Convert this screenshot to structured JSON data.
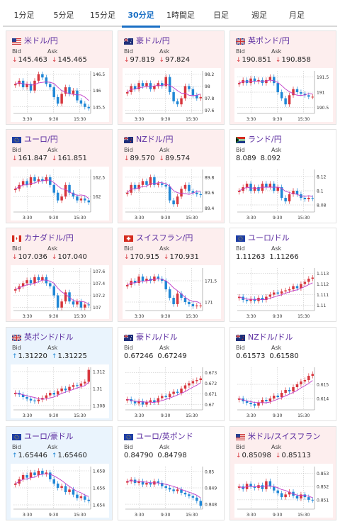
{
  "tabs": [
    {
      "label": "1分足",
      "active": false
    },
    {
      "label": "5分足",
      "active": false
    },
    {
      "label": "15分足",
      "active": false
    },
    {
      "label": "30分足",
      "active": true
    },
    {
      "label": "1時間足",
      "active": false
    },
    {
      "label": "日足",
      "active": false
    },
    {
      "label": "週足",
      "active": false
    },
    {
      "label": "月足",
      "active": false
    }
  ],
  "labels": {
    "bid": "Bid",
    "ask": "Ask"
  },
  "colors": {
    "up": "#1f87d6",
    "down": "#d7363d",
    "pair_text": "#5b2ca0",
    "ma_line": "#c13cc8",
    "active_tab": "#1a6fc4"
  },
  "cards": [
    {
      "pair": "米ドル/円",
      "flag": "us-flag",
      "direction": "down",
      "bid": "145.463",
      "ask": "145.465",
      "bg": "red",
      "chart_data": {
        "type": "candlestick",
        "x_ticks": [
          "3:30",
          "9:30",
          "15:30"
        ],
        "y_ticks": [
          "146.5",
          "146",
          "145.5"
        ],
        "ylim": [
          145.3,
          146.6
        ],
        "grid": true,
        "series": [
          146.2,
          146.3,
          146.1,
          146.2,
          146.0,
          146.3,
          146.5,
          146.4,
          146.2,
          146.1,
          145.8,
          145.6,
          145.9,
          146.1,
          145.9,
          146.0,
          145.7,
          145.6,
          145.5,
          145.46
        ]
      }
    },
    {
      "pair": "豪ドル/円",
      "flag": "au-flag",
      "direction": "down",
      "bid": "97.819",
      "ask": "97.824",
      "bg": "red",
      "chart_data": {
        "type": "candlestick",
        "x_ticks": [
          "3:30",
          "9:30",
          "15:30"
        ],
        "y_ticks": [
          "98.2",
          "98",
          "97.8",
          "97.6"
        ],
        "ylim": [
          97.55,
          98.25
        ],
        "grid": true,
        "series": [
          97.9,
          98.0,
          97.95,
          98.05,
          98.0,
          98.05,
          97.95,
          98.0,
          98.05,
          98.0,
          98.15,
          97.9,
          97.75,
          97.7,
          97.8,
          98.0,
          97.95,
          97.85,
          97.8,
          97.82
        ]
      }
    },
    {
      "pair": "英ポンド/円",
      "flag": "gb-flag",
      "direction": "down",
      "bid": "190.851",
      "ask": "190.858",
      "bg": "red",
      "chart_data": {
        "type": "candlestick",
        "x_ticks": [
          "3:30",
          "9:30",
          "15:30"
        ],
        "y_ticks": [
          "191.5",
          "191",
          "190.5"
        ],
        "ylim": [
          190.3,
          191.7
        ],
        "grid": true,
        "series": [
          191.3,
          191.4,
          191.3,
          191.45,
          191.35,
          191.4,
          191.3,
          191.4,
          191.5,
          191.3,
          191.0,
          190.8,
          190.6,
          190.9,
          191.1,
          191.0,
          190.95,
          190.9,
          190.85,
          190.85
        ]
      }
    },
    {
      "pair": "ユーロ/円",
      "flag": "eu-flag",
      "direction": "down",
      "bid": "161.847",
      "ask": "161.851",
      "bg": "red",
      "chart_data": {
        "type": "candlestick",
        "x_ticks": [
          "3:30",
          "9:30",
          "15:30"
        ],
        "y_ticks": [
          "162.5",
          "162"
        ],
        "ylim": [
          161.6,
          162.7
        ],
        "grid": true,
        "series": [
          162.2,
          162.3,
          162.4,
          162.3,
          162.5,
          162.4,
          162.45,
          162.4,
          162.5,
          162.3,
          162.1,
          161.9,
          162.0,
          162.3,
          162.1,
          162.0,
          161.9,
          161.95,
          161.9,
          161.85
        ]
      }
    },
    {
      "pair": "NZドル/円",
      "flag": "nz-flag",
      "direction": "down",
      "bid": "89.570",
      "ask": "89.574",
      "bg": "red",
      "chart_data": {
        "type": "candlestick",
        "x_ticks": [
          "3:30",
          "9:30",
          "15:30"
        ],
        "y_ticks": [
          "89.8",
          "89.6",
          "89.4"
        ],
        "ylim": [
          89.35,
          89.9
        ],
        "grid": true,
        "series": [
          89.6,
          89.7,
          89.65,
          89.7,
          89.75,
          89.7,
          89.8,
          89.7,
          89.72,
          89.7,
          89.68,
          89.5,
          89.45,
          89.55,
          89.65,
          89.7,
          89.62,
          89.6,
          89.58,
          89.57
        ]
      }
    },
    {
      "pair": "ランド/円",
      "flag": "za-flag",
      "direction": "none",
      "bid": "8.089",
      "ask": "8.092",
      "bg": "white",
      "chart_data": {
        "type": "candlestick",
        "x_ticks": [
          "3:30",
          "9:30",
          "15:30"
        ],
        "y_ticks": [
          "8.12",
          "8.1",
          "8.08"
        ],
        "ylim": [
          8.07,
          8.13
        ],
        "grid": true,
        "series": [
          8.1,
          8.105,
          8.11,
          8.1,
          8.105,
          8.1,
          8.11,
          8.105,
          8.11,
          8.1,
          8.105,
          8.09,
          8.085,
          8.095,
          8.1,
          8.095,
          8.09,
          8.088,
          8.09,
          8.089
        ]
      }
    },
    {
      "pair": "カナダドル/円",
      "flag": "ca-flag",
      "direction": "down",
      "bid": "107.036",
      "ask": "107.040",
      "bg": "red",
      "chart_data": {
        "type": "candlestick",
        "x_ticks": [
          "3:30",
          "9:30",
          "15:30"
        ],
        "y_ticks": [
          "107.6",
          "107.4",
          "107.2",
          "107"
        ],
        "ylim": [
          106.95,
          107.65
        ],
        "grid": true,
        "series": [
          107.3,
          107.35,
          107.4,
          107.45,
          107.4,
          107.5,
          107.45,
          107.5,
          107.4,
          107.35,
          107.2,
          107.0,
          107.1,
          107.25,
          107.1,
          107.05,
          107.1,
          107.0,
          107.05,
          107.04
        ]
      }
    },
    {
      "pair": "スイスフラン/円",
      "flag": "ch-flag",
      "direction": "down",
      "bid": "170.915",
      "ask": "170.931",
      "bg": "red",
      "chart_data": {
        "type": "candlestick",
        "x_ticks": [
          "3:30",
          "9:30",
          "15:30"
        ],
        "y_ticks": [
          "171.5",
          "171"
        ],
        "ylim": [
          170.8,
          171.8
        ],
        "grid": true,
        "series": [
          171.4,
          171.5,
          171.45,
          171.6,
          171.5,
          171.55,
          171.5,
          171.6,
          171.55,
          171.5,
          171.3,
          171.1,
          170.95,
          171.2,
          171.1,
          171.0,
          170.95,
          170.9,
          170.92,
          170.92
        ]
      }
    },
    {
      "pair": "ユーロ/ドル",
      "flag": "eu-flag",
      "direction": "none",
      "bid": "1.11263",
      "ask": "1.11266",
      "bg": "white",
      "chart_data": {
        "type": "candlestick",
        "x_ticks": [
          "3:30",
          "9:30",
          "15:30"
        ],
        "y_ticks": [
          "1.113",
          "1.112",
          "1.111",
          "1.11"
        ],
        "ylim": [
          1.1095,
          1.1135
        ],
        "grid": true,
        "series": [
          1.1108,
          1.1105,
          1.1104,
          1.1106,
          1.1104,
          1.1107,
          1.1105,
          1.1108,
          1.111,
          1.1112,
          1.1111,
          1.1113,
          1.1114,
          1.1115,
          1.1118,
          1.1116,
          1.112,
          1.1122,
          1.1125,
          1.1126
        ]
      }
    },
    {
      "pair": "英ポンド/ドル",
      "flag": "gb-flag",
      "direction": "up",
      "bid": "1.31220",
      "ask": "1.31225",
      "bg": "blue",
      "chart_data": {
        "type": "candlestick",
        "x_ticks": [
          "3:30",
          "9:30",
          "15:30"
        ],
        "y_ticks": [
          "1.312",
          "1.31",
          "1.308"
        ],
        "ylim": [
          1.3075,
          1.3125
        ],
        "grid": true,
        "series": [
          1.3095,
          1.3093,
          1.309,
          1.3088,
          1.3086,
          1.3085,
          1.3087,
          1.3089,
          1.3092,
          1.3095,
          1.3093,
          1.3097,
          1.31,
          1.3098,
          1.3102,
          1.3104,
          1.3103,
          1.3106,
          1.3108,
          1.3122
        ]
      }
    },
    {
      "pair": "豪ドル/ドル",
      "flag": "au-flag",
      "direction": "none",
      "bid": "0.67246",
      "ask": "0.67249",
      "bg": "white",
      "chart_data": {
        "type": "candlestick",
        "x_ticks": [
          "3:30",
          "9:30",
          "15:30"
        ],
        "y_ticks": [
          "0.673",
          "0.672",
          "0.671",
          "0.67"
        ],
        "ylim": [
          0.6695,
          0.6735
        ],
        "grid": true,
        "series": [
          0.6705,
          0.6703,
          0.6701,
          0.6703,
          0.67,
          0.6702,
          0.6704,
          0.6702,
          0.6706,
          0.6708,
          0.6707,
          0.671,
          0.6712,
          0.6711,
          0.6715,
          0.6718,
          0.672,
          0.6722,
          0.6723,
          0.67246
        ]
      }
    },
    {
      "pair": "NZドル/ドル",
      "flag": "nz-flag",
      "direction": "none",
      "bid": "0.61573",
      "ask": "0.61580",
      "bg": "white",
      "chart_data": {
        "type": "candlestick",
        "x_ticks": [
          "3:30",
          "9:30",
          "15:30"
        ],
        "y_ticks": [
          "0.615",
          "0.614"
        ],
        "ylim": [
          0.6132,
          0.6162
        ],
        "grid": true,
        "series": [
          0.614,
          0.6138,
          0.6137,
          0.6136,
          0.6135,
          0.6137,
          0.6139,
          0.6138,
          0.614,
          0.6142,
          0.6141,
          0.6144,
          0.6146,
          0.6145,
          0.6148,
          0.615,
          0.6152,
          0.6153,
          0.6156,
          0.61573
        ]
      }
    },
    {
      "pair": "ユーロ/豪ドル",
      "flag": "eu-flag",
      "direction": "up",
      "bid": "1.65446",
      "ask": "1.65460",
      "bg": "blue",
      "chart_data": {
        "type": "candlestick",
        "x_ticks": [
          "3:30",
          "9:30",
          "15:30"
        ],
        "y_ticks": [
          "1.658",
          "1.656",
          "1.654"
        ],
        "ylim": [
          1.6535,
          1.6585
        ],
        "grid": true,
        "series": [
          1.6565,
          1.657,
          1.6575,
          1.6572,
          1.6578,
          1.6575,
          1.658,
          1.6576,
          1.6578,
          1.657,
          1.6565,
          1.656,
          1.6562,
          1.6555,
          1.6558,
          1.6552,
          1.6548,
          1.655,
          1.6546,
          1.65446
        ]
      }
    },
    {
      "pair": "ユーロ/英ポンド",
      "flag": "eu-flag",
      "direction": "none",
      "bid": "0.84790",
      "ask": "0.84798",
      "bg": "white",
      "chart_data": {
        "type": "candlestick",
        "x_ticks": [
          "3:30",
          "9:30",
          "15:30"
        ],
        "y_ticks": [
          "0.85",
          "0.849",
          "0.848"
        ],
        "ylim": [
          0.8477,
          0.8503
        ],
        "grid": true,
        "series": [
          0.8494,
          0.8495,
          0.8493,
          0.8494,
          0.8492,
          0.8493,
          0.8492,
          0.8494,
          0.8493,
          0.8491,
          0.849,
          0.8489,
          0.8488,
          0.8489,
          0.8487,
          0.8486,
          0.8485,
          0.8484,
          0.8482,
          0.8479
        ]
      }
    },
    {
      "pair": "米ドル/スイスフラン",
      "flag": "us-flag",
      "direction": "down",
      "bid": "0.85098",
      "ask": "0.85113",
      "bg": "red",
      "chart_data": {
        "type": "candlestick",
        "x_ticks": [
          "3:30",
          "9:30",
          "15:30"
        ],
        "y_ticks": [
          "0.853",
          "0.852",
          "0.851"
        ],
        "ylim": [
          0.8503,
          0.8535
        ],
        "grid": true,
        "series": [
          0.852,
          0.8518,
          0.8522,
          0.852,
          0.8519,
          0.8521,
          0.8518,
          0.8524,
          0.852,
          0.8517,
          0.8515,
          0.8512,
          0.8514,
          0.8516,
          0.8513,
          0.8511,
          0.8514,
          0.8512,
          0.851,
          0.85098
        ]
      }
    }
  ]
}
